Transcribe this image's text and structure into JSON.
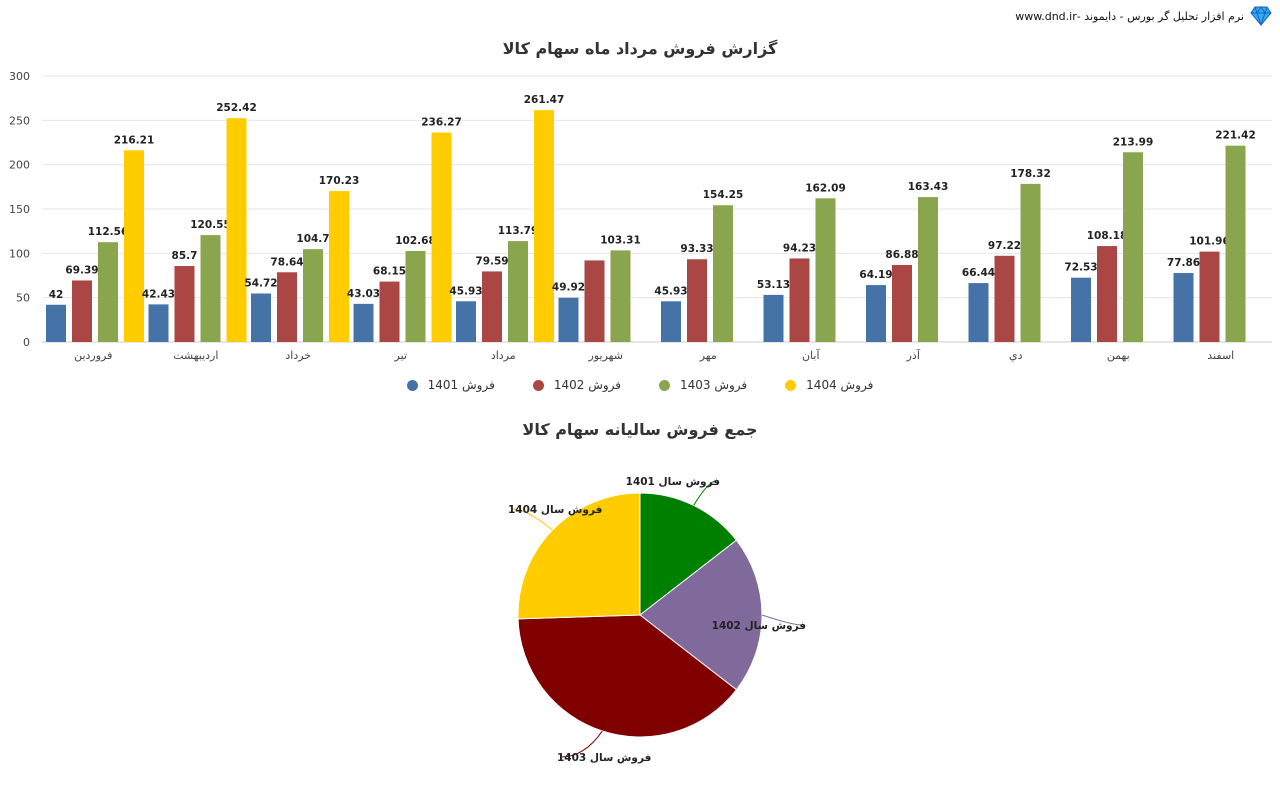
{
  "brand": {
    "text": "نرم افزار تحلیل گر بورس - دایموند -www.dnd.ir",
    "icon": "diamond-icon",
    "icon_color": "#1e90ff"
  },
  "chart_data": [
    {
      "type": "bar",
      "title": "گزارش فروش مرداد ماه سهام کالا",
      "categories": [
        "فروردین",
        "اردیبهشت",
        "خرداد",
        "تیر",
        "مرداد",
        "شهریور",
        "مهر",
        "آبان",
        "آذر",
        "دي",
        "بهمن",
        "اسفند"
      ],
      "series": [
        {
          "name": "فروش 1401",
          "color": "#4572a7",
          "values": [
            42,
            42.43,
            54.72,
            43.03,
            45.93,
            49.92,
            45.93,
            53.13,
            64.19,
            66.44,
            72.53,
            77.86
          ],
          "labels": [
            "42",
            "42.43",
            "54.72",
            "43.03",
            "45.93",
            "49.92",
            "45.93",
            "53.13",
            "64.19",
            "66.44",
            "72.53",
            "77.86"
          ]
        },
        {
          "name": "فروش 1402",
          "color": "#aa4643",
          "values": [
            69.39,
            85.7,
            78.64,
            68.15,
            79.59,
            92,
            93.33,
            94.23,
            86.88,
            97.22,
            108.18,
            101.96
          ],
          "labels": [
            "69.39",
            "85.7",
            "78.64",
            "68.15",
            "79.59",
            "",
            "93.33",
            "94.23",
            "86.88",
            "97.22",
            "108.18",
            "101.96"
          ]
        },
        {
          "name": "فروش 1403",
          "color": "#89a54e",
          "values": [
            112.56,
            120.55,
            104.7,
            102.68,
            113.79,
            103.31,
            154.25,
            162.09,
            163.43,
            178.32,
            213.99,
            221.42
          ],
          "labels": [
            "112.56",
            "120.55",
            "104.7",
            "102.68",
            "113.79",
            "103.31",
            "154.25",
            "162.09",
            "163.43",
            "178.32",
            "213.99",
            "221.42"
          ]
        },
        {
          "name": "فروش 1404",
          "color": "#ffcc00",
          "values": [
            216.21,
            252.42,
            170.23,
            236.27,
            261.47,
            null,
            null,
            null,
            null,
            null,
            null,
            null
          ],
          "labels": [
            "216.21",
            "252.42",
            "170.23",
            "236.27",
            "261.47",
            "",
            "",
            "",
            "",
            "",
            "",
            ""
          ]
        }
      ],
      "y_ticks": [
        "0",
        "50",
        "100",
        "150",
        "200",
        "250",
        "300"
      ],
      "ylim": [
        0,
        300
      ],
      "grid": true,
      "legend_position": "bottom"
    },
    {
      "type": "pie",
      "title": "جمع فروش سالیانه سهام کالا",
      "slices": [
        {
          "label": "فروش سال 1401",
          "value": 14.5,
          "color": "#008000"
        },
        {
          "label": "فروش سال 1402",
          "value": 21.0,
          "color": "#806a9c"
        },
        {
          "label": "فروش سال 1403",
          "value": 39.0,
          "color": "#800000"
        },
        {
          "label": "فروش سال 1404",
          "value": 25.5,
          "color": "#ffcc00"
        }
      ]
    }
  ]
}
